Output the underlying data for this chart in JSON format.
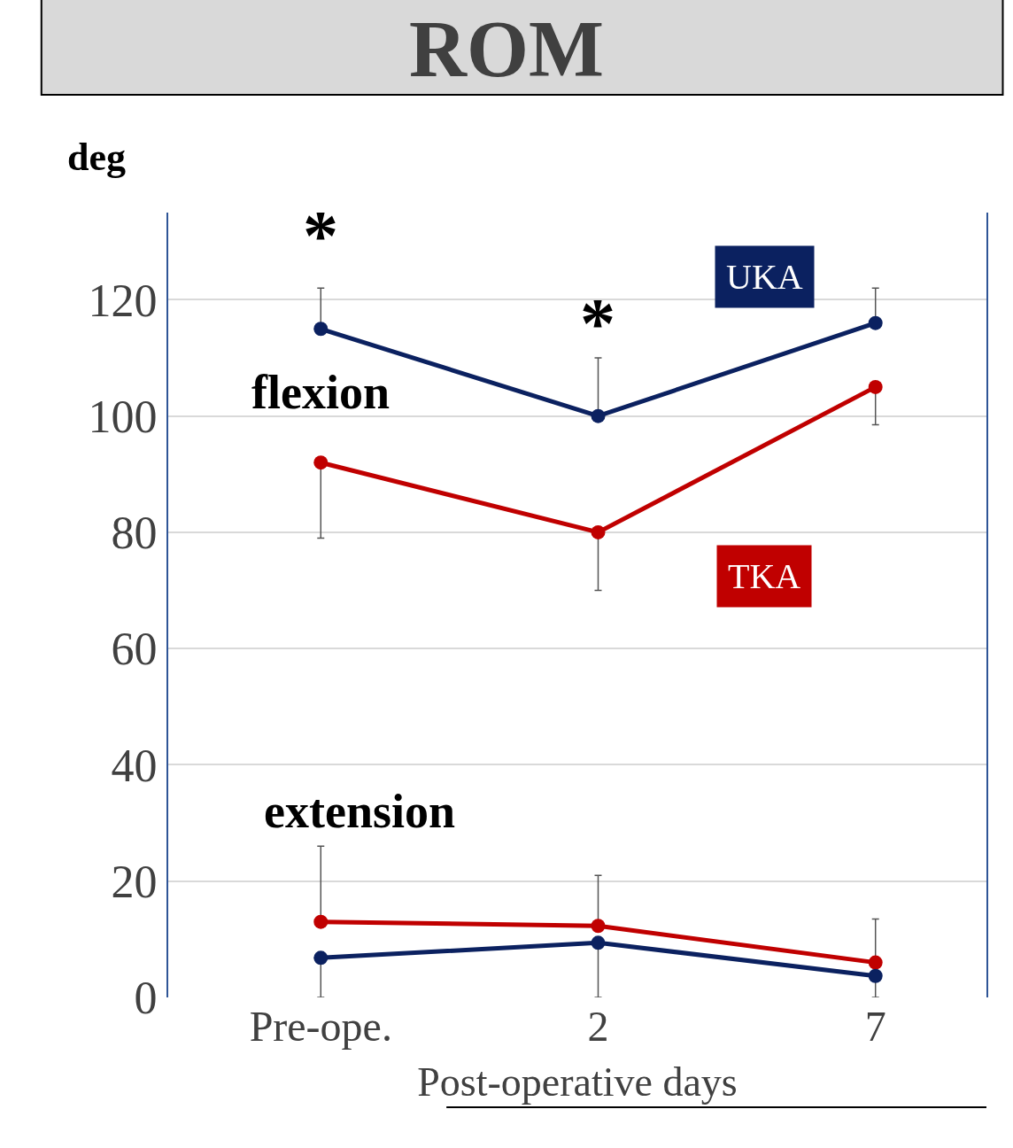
{
  "chart_data": {
    "type": "line",
    "title": "ROM",
    "ylabel": "deg",
    "xlabel": "Post-operative days",
    "categories": [
      "Pre-ope.",
      "2",
      "7"
    ],
    "series": [
      {
        "name": "UKA",
        "color": "#0b2160",
        "values": [
          115,
          100,
          116
        ],
        "errors": [
          [
            115,
            122
          ],
          [
            100,
            110
          ],
          [
            116,
            122
          ]
        ]
      },
      {
        "name": "TKA",
        "color": "#c00000",
        "values": [
          92,
          80,
          105
        ],
        "errors": [
          [
            79,
            92
          ],
          [
            70,
            80
          ],
          [
            98.5,
            105
          ]
        ]
      },
      {
        "color": "#c00000",
        "values": [
          13,
          12.3,
          6
        ],
        "errors": [
          [
            13,
            26
          ],
          [
            12.3,
            21
          ],
          [
            6,
            13.5
          ]
        ]
      },
      {
        "color": "#0b2160",
        "values": [
          6.8,
          9.4,
          3.7
        ],
        "errors": [
          [
            0,
            6.8
          ],
          [
            0,
            9.4
          ],
          [
            0,
            3.7
          ]
        ]
      }
    ],
    "annotations": [
      "*",
      "*",
      "flexion",
      "extension"
    ],
    "ylim": [
      0,
      135
    ],
    "yticks": [
      0,
      20,
      40,
      60,
      80,
      100,
      120
    ],
    "grid": "y",
    "legend": false,
    "marker": "circle",
    "line_style": "solid"
  }
}
